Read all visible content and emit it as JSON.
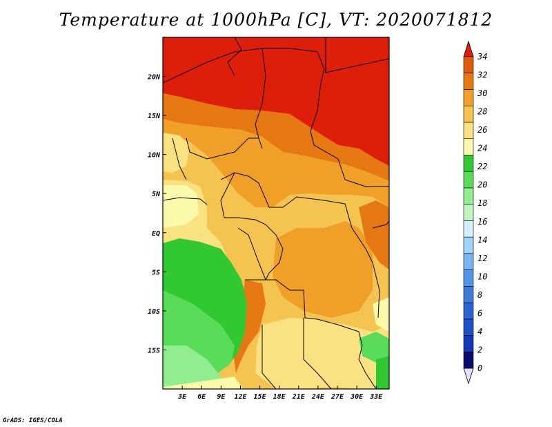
{
  "title": "Temperature at 1000hPa [C], VT: 2020071812",
  "footer": "GrADS: IGES/COLA",
  "map": {
    "lon_range": [
      0,
      35
    ],
    "lat_range": [
      -20,
      25
    ],
    "lon_ticks": [
      "3E",
      "6E",
      "9E",
      "12E",
      "15E",
      "18E",
      "21E",
      "24E",
      "27E",
      "30E",
      "33E"
    ],
    "lat_ticks": [
      "20N",
      "15N",
      "10N",
      "5N",
      "EQ",
      "5S",
      "10S",
      "15S"
    ]
  },
  "colorbar": {
    "labels": [
      "0",
      "2",
      "4",
      "6",
      "8",
      "10",
      "12",
      "14",
      "16",
      "18",
      "20",
      "22",
      "24",
      "26",
      "28",
      "30",
      "32",
      "34"
    ],
    "colors": [
      "#0a0a6e",
      "#1438b4",
      "#1e50c8",
      "#2864d2",
      "#3c7ddc",
      "#5096e6",
      "#78b4f0",
      "#a0d2fa",
      "#d2f0ff",
      "#c0f5c0",
      "#90ee90",
      "#5adc5a",
      "#32c832",
      "#fafaaa",
      "#fae182",
      "#f5c350",
      "#f0a028",
      "#e67814",
      "#dc5a0a",
      "#dc1e0a"
    ]
  }
}
